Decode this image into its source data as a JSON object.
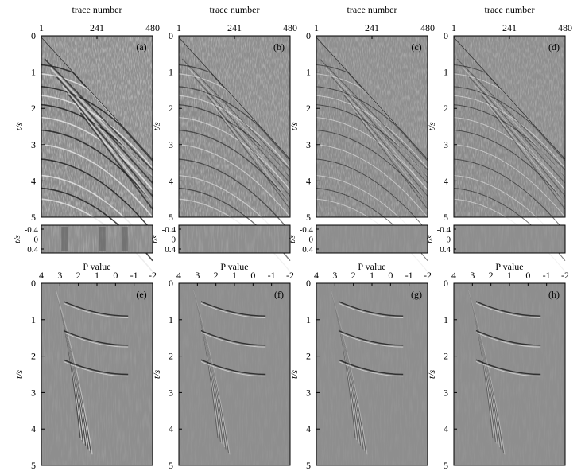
{
  "figure": {
    "top_xlabel": "trace number",
    "top_xticks": [
      "1",
      "241",
      "480"
    ],
    "bottom_xlabel": "P value",
    "bottom_xticks": [
      "4",
      "3",
      "2",
      "1",
      "0",
      "-1",
      "-2"
    ],
    "ylabel": "t/s",
    "main_yticks": [
      "0",
      "1",
      "2",
      "3",
      "4",
      "5"
    ],
    "strip_yticks": [
      "-0.4",
      "0",
      "0.4"
    ],
    "top_panel_labels": [
      "(a)",
      "(b)",
      "(c)",
      "(d)"
    ],
    "bottom_panel_labels": [
      "(e)",
      "(f)",
      "(g)",
      "(h)"
    ],
    "background_gray": "#8e8e8e",
    "frame_color": "#000000"
  }
}
